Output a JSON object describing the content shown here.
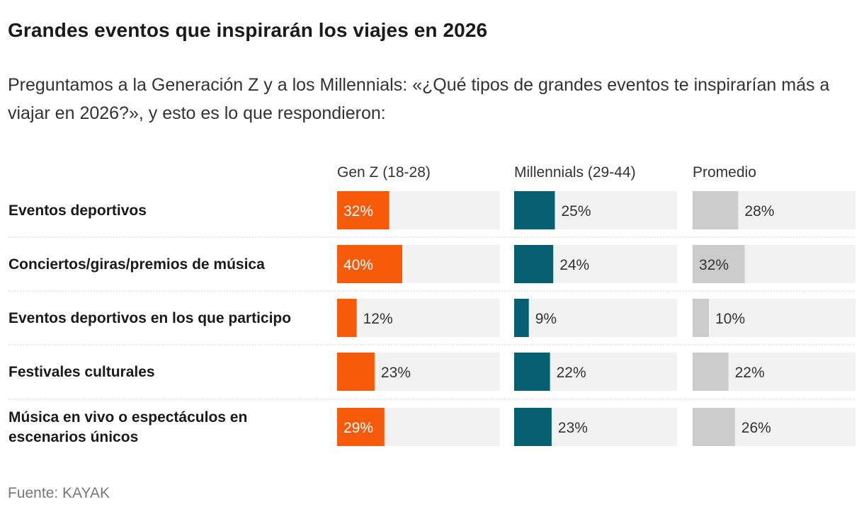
{
  "header": {
    "title": "Grandes eventos que inspirarán los viajes en 2026",
    "subtitle": "Preguntamos a la Generación Z y a los Millennials: «¿Qué tipos de grandes eventos te inspirarían más a viajar en 2026?», y esto es lo que respondieron:"
  },
  "footer": {
    "source": "Fuente: KAYAK"
  },
  "colors": {
    "genz": "#f55b0a",
    "millennials": "#075f72",
    "promedio": "#cccccc",
    "track": "#f2f2f2",
    "label_on_dark": "#ffffff",
    "label_on_light": "#333333",
    "divider": "#cfcfcf"
  },
  "chart_data": {
    "type": "bar",
    "orientation": "horizontal",
    "unit": "%",
    "xlim": [
      0,
      100
    ],
    "categories": [
      [
        "Eventos deportivos"
      ],
      [
        "Conciertos/giras/premios de música"
      ],
      [
        "Eventos deportivos en los que participo"
      ],
      [
        "Festivales culturales"
      ],
      [
        "Música en vivo o espectáculos en",
        "escenarios únicos"
      ]
    ],
    "series": [
      {
        "name": "Gen Z (18-28)",
        "key": "genz",
        "values": [
          32,
          40,
          12,
          23,
          29
        ],
        "inside_threshold": 25
      },
      {
        "name": "Millennials (29-44)",
        "key": "millennials",
        "values": [
          25,
          24,
          9,
          22,
          23
        ],
        "inside_threshold": 101
      },
      {
        "name": "Promedio",
        "key": "promedio",
        "values": [
          28,
          32,
          10,
          22,
          26
        ],
        "inside_threshold": 30
      }
    ],
    "value_labels": [
      [
        "32%",
        "40%",
        "12%",
        "23%",
        "29%"
      ],
      [
        "25%",
        "24%",
        "9%",
        "22%",
        "23%"
      ],
      [
        "28%",
        "32%",
        "10%",
        "22%",
        "26%"
      ]
    ]
  }
}
